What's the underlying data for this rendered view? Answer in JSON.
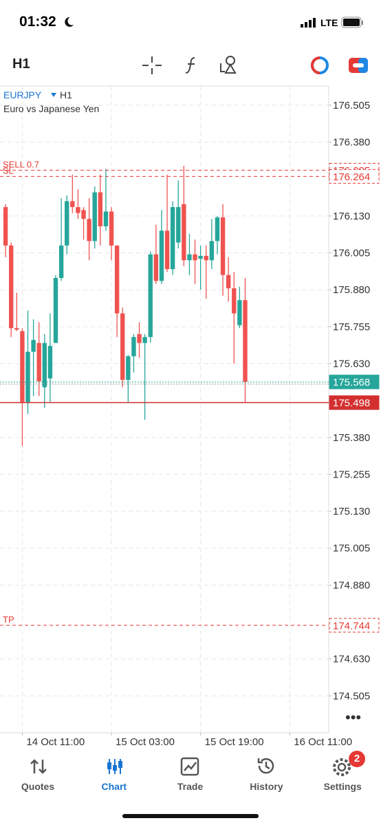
{
  "status_bar": {
    "time": "01:32",
    "network": "LTE"
  },
  "toolbar": {
    "timeframe": "H1"
  },
  "chart_data": {
    "type": "candlestick",
    "symbol": "EURJPY",
    "timeframe": "H1",
    "description": "Euro vs Japanese Yen",
    "up_color": "#26a69a",
    "down_color": "#ef5350",
    "grid": true,
    "candles": [
      {
        "open": 176.16,
        "high": 176.17,
        "low": 175.99,
        "close": 176.03
      },
      {
        "open": 176.03,
        "high": 176.04,
        "low": 175.72,
        "close": 175.75
      },
      {
        "open": 175.75,
        "high": 175.87,
        "low": 175.74,
        "close": 175.745
      },
      {
        "open": 175.74,
        "high": 175.75,
        "low": 175.35,
        "close": 175.5
      },
      {
        "open": 175.5,
        "high": 175.81,
        "low": 175.46,
        "close": 175.67
      },
      {
        "open": 175.67,
        "high": 175.78,
        "low": 175.52,
        "close": 175.71
      },
      {
        "open": 175.7,
        "high": 175.77,
        "low": 175.52,
        "close": 175.57
      },
      {
        "open": 175.55,
        "high": 175.73,
        "low": 175.48,
        "close": 175.7
      },
      {
        "open": 175.58,
        "high": 175.8,
        "low": 175.5,
        "close": 175.69
      },
      {
        "open": 175.7,
        "high": 175.93,
        "low": 175.7,
        "close": 175.92
      },
      {
        "open": 175.92,
        "high": 176.19,
        "low": 175.91,
        "close": 176.03
      },
      {
        "open": 176.03,
        "high": 176.2,
        "low": 176.0,
        "close": 176.18
      },
      {
        "open": 176.18,
        "high": 176.27,
        "low": 176.14,
        "close": 176.16
      },
      {
        "open": 176.16,
        "high": 176.22,
        "low": 176.12,
        "close": 176.14
      },
      {
        "open": 176.15,
        "high": 176.16,
        "low": 176.05,
        "close": 176.12
      },
      {
        "open": 176.12,
        "high": 176.19,
        "low": 175.98,
        "close": 176.045
      },
      {
        "open": 176.045,
        "high": 176.23,
        "low": 176.02,
        "close": 176.21
      },
      {
        "open": 176.21,
        "high": 176.27,
        "low": 176.03,
        "close": 176.095
      },
      {
        "open": 176.095,
        "high": 176.29,
        "low": 176.08,
        "close": 176.145
      },
      {
        "open": 176.145,
        "high": 176.16,
        "low": 175.98,
        "close": 176.03
      },
      {
        "open": 176.03,
        "high": 176.03,
        "low": 175.72,
        "close": 175.8
      },
      {
        "open": 175.8,
        "high": 175.82,
        "low": 175.55,
        "close": 175.575
      },
      {
        "open": 175.575,
        "high": 175.66,
        "low": 175.5,
        "close": 175.655
      },
      {
        "open": 175.655,
        "high": 175.73,
        "low": 175.6,
        "close": 175.72
      },
      {
        "open": 175.73,
        "high": 175.77,
        "low": 175.65,
        "close": 175.7
      },
      {
        "open": 175.7,
        "high": 175.73,
        "low": 175.44,
        "close": 175.72
      },
      {
        "open": 175.72,
        "high": 176.01,
        "low": 175.7,
        "close": 176.0
      },
      {
        "open": 176.0,
        "high": 176.1,
        "low": 175.9,
        "close": 175.91
      },
      {
        "open": 175.91,
        "high": 176.15,
        "low": 175.9,
        "close": 176.08
      },
      {
        "open": 176.08,
        "high": 176.27,
        "low": 175.94,
        "close": 175.95
      },
      {
        "open": 175.95,
        "high": 176.18,
        "low": 175.93,
        "close": 176.16
      },
      {
        "open": 176.04,
        "high": 176.25,
        "low": 176.02,
        "close": 176.16
      },
      {
        "open": 176.17,
        "high": 176.3,
        "low": 175.96,
        "close": 175.98
      },
      {
        "open": 175.98,
        "high": 176.07,
        "low": 175.93,
        "close": 176.0
      },
      {
        "open": 176.0,
        "high": 176.05,
        "low": 175.9,
        "close": 175.98
      },
      {
        "open": 175.985,
        "high": 176.03,
        "low": 175.88,
        "close": 175.995
      },
      {
        "open": 175.995,
        "high": 176.03,
        "low": 175.85,
        "close": 175.98
      },
      {
        "open": 175.98,
        "high": 176.12,
        "low": 175.95,
        "close": 176.045
      },
      {
        "open": 176.045,
        "high": 176.13,
        "low": 176.0,
        "close": 176.125
      },
      {
        "open": 176.125,
        "high": 176.17,
        "low": 175.86,
        "close": 175.93
      },
      {
        "open": 175.93,
        "high": 175.99,
        "low": 175.84,
        "close": 175.885
      },
      {
        "open": 175.885,
        "high": 175.94,
        "low": 175.63,
        "close": 175.8
      },
      {
        "open": 175.76,
        "high": 175.89,
        "low": 175.75,
        "close": 175.845
      },
      {
        "open": 175.845,
        "high": 175.92,
        "low": 175.498,
        "close": 175.568
      }
    ],
    "xlim": [
      -1,
      58
    ],
    "xticks": [
      {
        "value": 3,
        "label": "14 Oct 11:00"
      },
      {
        "value": 19,
        "label": "15 Oct 03:00"
      },
      {
        "value": 35,
        "label": "15 Oct 19:00"
      },
      {
        "value": 51,
        "label": "16 Oct 11:00"
      }
    ],
    "ylim": [
      174.38,
      176.57
    ],
    "yticks": [
      176.505,
      {
        "value": 176.38,
        "label": "176.380"
      },
      {
        "value": 176.13,
        "label": "176.130"
      },
      176.005,
      {
        "value": 175.88,
        "label": "175.880"
      },
      175.755,
      {
        "value": 175.63,
        "label": "175.630"
      },
      {
        "value": 175.38,
        "label": "175.380"
      },
      175.255,
      {
        "value": 175.13,
        "label": "175.130"
      },
      175.005,
      {
        "value": 174.88,
        "label": "174.880"
      },
      {
        "value": 174.63,
        "label": "174.630"
      },
      174.505
    ],
    "levels": [
      {
        "label": "SELL 0.7",
        "value": 176.285,
        "color": "#e53935",
        "line": "dashed",
        "box": "outline"
      },
      {
        "label": "SL",
        "value": 176.264,
        "color": "#e53935",
        "line": "dashed",
        "box": "outline"
      },
      {
        "value": 175.568,
        "color": "#26a69a",
        "line": "dotted",
        "box": "filled"
      },
      {
        "value": 175.498,
        "color": "#d32f2f",
        "line": "solid",
        "box": "filled"
      },
      {
        "label": "TP",
        "value": 174.744,
        "color": "#e53935",
        "line": "dashed",
        "box": "outline"
      }
    ]
  },
  "tab_bar": {
    "tabs": [
      "Quotes",
      "Chart",
      "Trade",
      "History",
      "Settings"
    ],
    "active": "Chart",
    "badge": "2"
  }
}
